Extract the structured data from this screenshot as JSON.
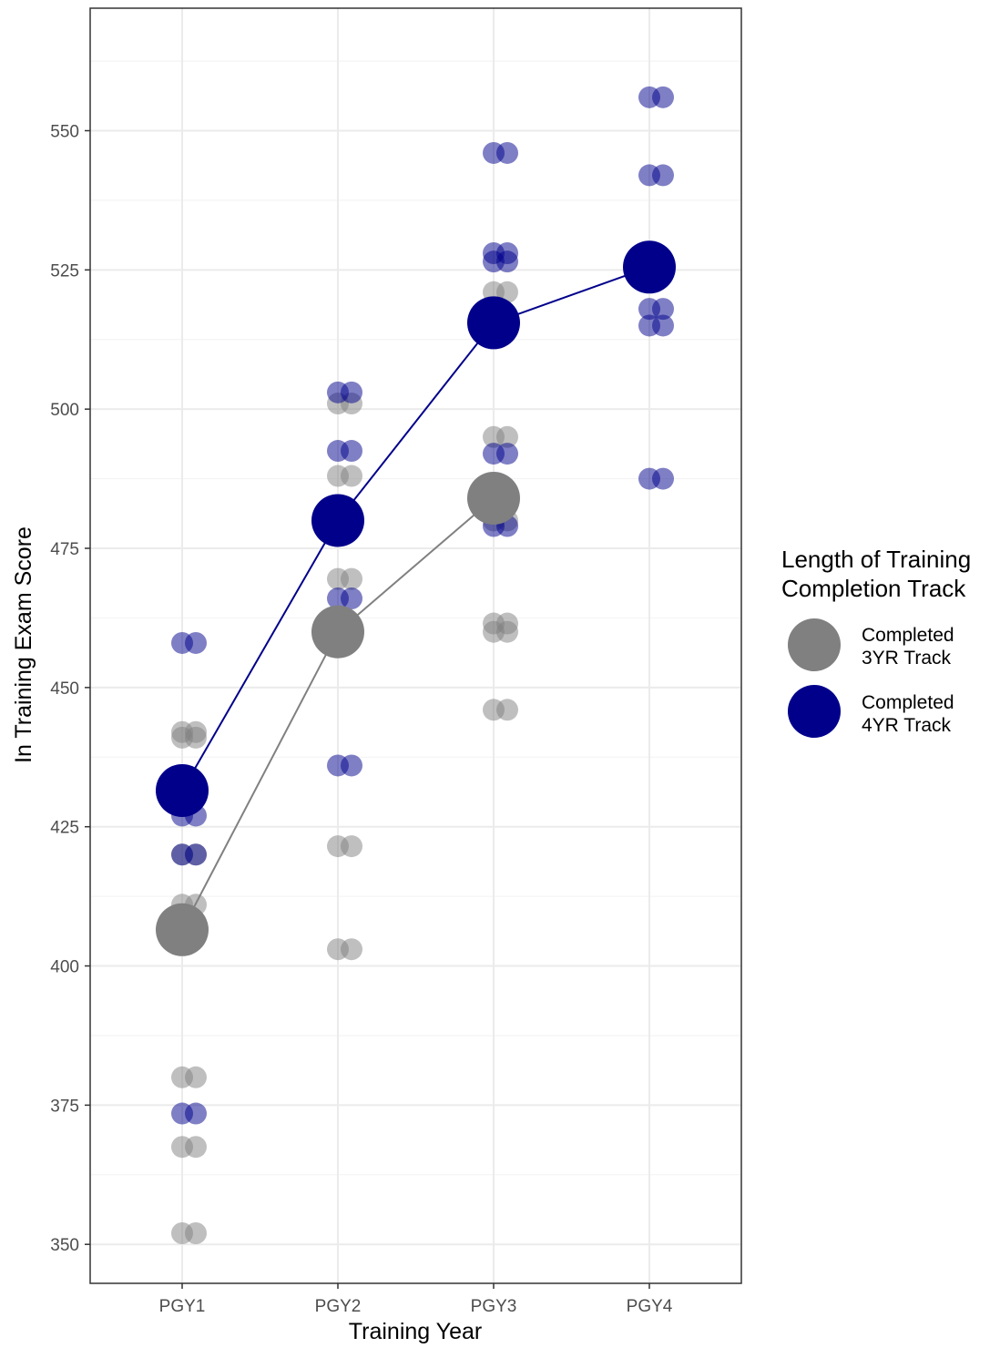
{
  "chart_data": {
    "type": "scatter",
    "title": "",
    "xlabel": "Training Year",
    "ylabel": "In Training Exam Score",
    "categories": [
      "PGY1",
      "PGY2",
      "PGY3",
      "PGY4"
    ],
    "yticks": [
      "350",
      "375",
      "400",
      "425",
      "450",
      "475",
      "500",
      "525",
      "550"
    ],
    "ylim": [
      343,
      572
    ],
    "grid": true,
    "legend": {
      "title_line1": "Length of Training",
      "title_line2": "Completion Track",
      "position": "right"
    },
    "series": [
      {
        "label_line1": "Completed",
        "label_line2": "3YR Track",
        "color": "#808080",
        "points": [
          {
            "x": "PGY1",
            "y": 441
          },
          {
            "x": "PGY1",
            "y": 442
          },
          {
            "x": "PGY1",
            "y": 420
          },
          {
            "x": "PGY1",
            "y": 411
          },
          {
            "x": "PGY1",
            "y": 380
          },
          {
            "x": "PGY1",
            "y": 367.5
          },
          {
            "x": "PGY1",
            "y": 352
          },
          {
            "x": "PGY2",
            "y": 501
          },
          {
            "x": "PGY2",
            "y": 488
          },
          {
            "x": "PGY2",
            "y": 469.5
          },
          {
            "x": "PGY2",
            "y": 421.5
          },
          {
            "x": "PGY2",
            "y": 403
          },
          {
            "x": "PGY3",
            "y": 521
          },
          {
            "x": "PGY3",
            "y": 495
          },
          {
            "x": "PGY3",
            "y": 480
          },
          {
            "x": "PGY3",
            "y": 461.5
          },
          {
            "x": "PGY3",
            "y": 460
          },
          {
            "x": "PGY3",
            "y": 446
          }
        ],
        "means": [
          {
            "x": "PGY1",
            "y": 406.5
          },
          {
            "x": "PGY2",
            "y": 460
          },
          {
            "x": "PGY3",
            "y": 484
          }
        ]
      },
      {
        "label_line1": "Completed",
        "label_line2": "4YR Track",
        "color": "#00008b",
        "points": [
          {
            "x": "PGY1",
            "y": 458
          },
          {
            "x": "PGY1",
            "y": 427
          },
          {
            "x": "PGY1",
            "y": 420
          },
          {
            "x": "PGY1",
            "y": 373.5
          },
          {
            "x": "PGY2",
            "y": 503
          },
          {
            "x": "PGY2",
            "y": 492.5
          },
          {
            "x": "PGY2",
            "y": 466
          },
          {
            "x": "PGY2",
            "y": 436
          },
          {
            "x": "PGY3",
            "y": 546
          },
          {
            "x": "PGY3",
            "y": 528
          },
          {
            "x": "PGY3",
            "y": 526.5
          },
          {
            "x": "PGY3",
            "y": 492
          },
          {
            "x": "PGY3",
            "y": 479
          },
          {
            "x": "PGY4",
            "y": 556
          },
          {
            "x": "PGY4",
            "y": 542
          },
          {
            "x": "PGY4",
            "y": 518
          },
          {
            "x": "PGY4",
            "y": 515
          },
          {
            "x": "PGY4",
            "y": 487.5
          }
        ],
        "means": [
          {
            "x": "PGY1",
            "y": 431.5
          },
          {
            "x": "PGY2",
            "y": 480
          },
          {
            "x": "PGY3",
            "y": 515.5
          },
          {
            "x": "PGY4",
            "y": 525.5
          }
        ]
      }
    ]
  }
}
